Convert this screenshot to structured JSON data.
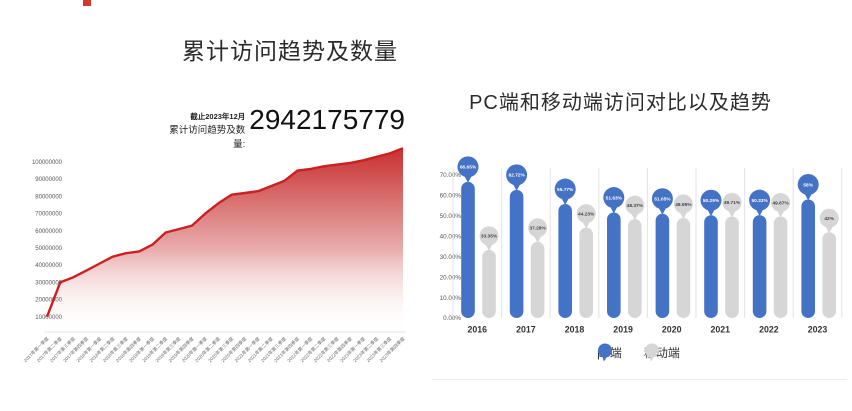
{
  "left_panel": {
    "title": "累计访问趋势及数量",
    "as_of": "截止2023年12月",
    "total_label": "累计访问趋势及数量:",
    "total_value": "2942175779"
  },
  "right_panel": {
    "title": "PC端和移动端访问对比以及趋势",
    "legend": [
      {
        "label": "pc端",
        "color": "#4472c4"
      },
      {
        "label": "移动端",
        "color": "#d6d6d6"
      }
    ]
  },
  "chart_data": [
    {
      "type": "area",
      "title": "累计访问趋势及数量",
      "x": [
        "2017年第一季度",
        "2017年第二季度",
        "2017年第三季度",
        "2017年第四季度",
        "2018年第一季度",
        "2018年第二季度",
        "2018年第三季度",
        "2018年第四季度",
        "2019年第一季度",
        "2019年第二季度",
        "2019年第三季度",
        "2019年第四季度",
        "2020年第一季度",
        "2020年第二季度",
        "2020年第三季度",
        "2020年第四季度",
        "2021年第一季度",
        "2021年第二季度",
        "2021年第三季度",
        "2021年第四季度",
        "2022年第一季度",
        "2022年第二季度",
        "2022年第三季度",
        "2022年第四季度",
        "2023年第一季度",
        "2023年第二季度",
        "2023年第三季度",
        "2023年第四季度"
      ],
      "values": [
        10000000,
        30000000,
        33000000,
        37000000,
        41000000,
        45000000,
        47000000,
        48000000,
        52000000,
        59000000,
        61000000,
        63000000,
        70000000,
        76000000,
        81000000,
        82000000,
        83000000,
        86000000,
        89000000,
        95000000,
        96000000,
        97500000,
        98500000,
        99500000,
        101000000,
        103000000,
        105000000,
        108000000
      ],
      "y_ticks": [
        "100000000",
        "90000000",
        "80000000",
        "70000000",
        "60000000",
        "50000000",
        "40000000",
        "30000000",
        "20000000",
        "10000000"
      ],
      "ylim": [
        0,
        100000000
      ],
      "line_color": "#cb2020",
      "fill_top_color": "#c52525",
      "grid": false,
      "legend_position": "none"
    },
    {
      "type": "bar",
      "title": "PC端和移动端访问对比以及趋势",
      "categories": [
        "2016",
        "2017",
        "2018",
        "2019",
        "2020",
        "2021",
        "2022",
        "2023"
      ],
      "series": [
        {
          "name": "pc端",
          "color": "#4472c4",
          "values": [
            66.65,
            62.72,
            55.77,
            51.63,
            51.05,
            50.29,
            50.33,
            58
          ],
          "labels": [
            "66.65%",
            "62.72%",
            "55.77%",
            "51.63%",
            "51.05%",
            "50.29%",
            "50.33%",
            "58%"
          ]
        },
        {
          "name": "移动端",
          "color": "#d6d6d6",
          "values": [
            33.35,
            37.28,
            44.23,
            48.37,
            48.95,
            49.71,
            49.67,
            42
          ],
          "labels": [
            "33.35%",
            "37.28%",
            "44.23%",
            "48.37%",
            "48.95%",
            "49.71%",
            "49.67%",
            "42%"
          ]
        }
      ],
      "y_ticks": [
        "70.00%",
        "60.00%",
        "50.00%",
        "40.00%",
        "30.00%",
        "20.00%",
        "10.00%",
        "0.00%"
      ],
      "ylim": [
        0,
        70
      ],
      "xlabel": "",
      "ylabel": "",
      "grid": false,
      "legend_position": "bottom"
    }
  ]
}
